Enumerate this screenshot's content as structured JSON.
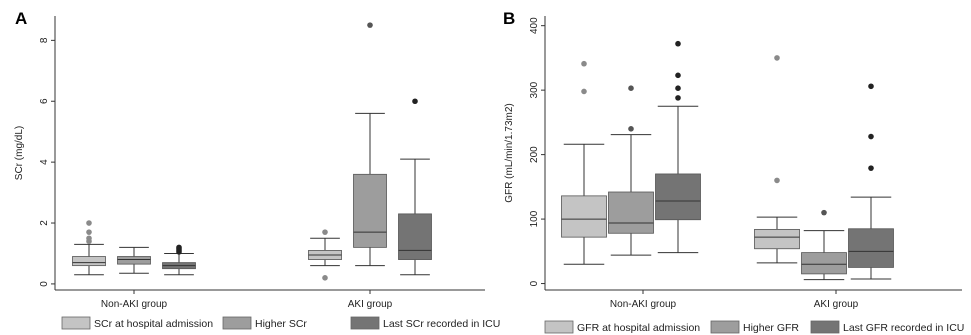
{
  "chart_data": [
    {
      "type": "box",
      "panel_label": "A",
      "ylabel": "SCr (mg/dL)",
      "xlabel": "",
      "ylim": [
        -0.2,
        8.8
      ],
      "yticks": [
        0,
        2,
        4,
        6,
        8
      ],
      "grid": false,
      "legend_position": "bottom",
      "categories": [
        "Non-AKI group",
        "AKI group"
      ],
      "series": [
        {
          "name": "SCr at hospital admission",
          "color": "#c4c4c4",
          "boxes": [
            {
              "min": 0.3,
              "q1": 0.6,
              "median": 0.7,
              "q3": 0.9,
              "max": 1.3,
              "outliers": [
                1.4,
                1.5,
                1.7,
                2.0
              ]
            },
            {
              "min": 0.6,
              "q1": 0.8,
              "median": 0.95,
              "q3": 1.1,
              "max": 1.5,
              "outliers": [
                0.2,
                1.7
              ]
            }
          ]
        },
        {
          "name": "Higher SCr",
          "color": "#9d9d9d",
          "boxes": [
            {
              "min": 0.35,
              "q1": 0.65,
              "median": 0.8,
              "q3": 0.9,
              "max": 1.2,
              "outliers": []
            },
            {
              "min": 0.6,
              "q1": 1.2,
              "median": 1.7,
              "q3": 3.6,
              "max": 5.6,
              "outliers": [
                8.5
              ]
            }
          ]
        },
        {
          "name": "Last SCr recorded in ICU",
          "color": "#747474",
          "boxes": [
            {
              "min": 0.3,
              "q1": 0.5,
              "median": 0.6,
              "q3": 0.7,
              "max": 1.0,
              "outliers": [
                1.05,
                1.1,
                1.15,
                1.2
              ]
            },
            {
              "min": 0.3,
              "q1": 0.8,
              "median": 1.1,
              "q3": 2.3,
              "max": 4.1,
              "outliers": [
                6.0
              ]
            }
          ]
        }
      ]
    },
    {
      "type": "box",
      "panel_label": "B",
      "ylabel": "GFR (mL/min/1.73m2)",
      "xlabel": "",
      "ylim": [
        -10,
        415
      ],
      "yticks": [
        0,
        100,
        200,
        300,
        400
      ],
      "grid": false,
      "legend_position": "bottom",
      "categories": [
        "Non-AKI group",
        "AKI group"
      ],
      "series": [
        {
          "name": "GFR at hospital admission",
          "color": "#c4c4c4",
          "boxes": [
            {
              "min": 30,
              "q1": 72,
              "median": 100,
              "q3": 136,
              "max": 216,
              "outliers": [
                298,
                341
              ]
            },
            {
              "min": 32,
              "q1": 54,
              "median": 72,
              "q3": 84,
              "max": 103,
              "outliers": [
                160,
                350
              ]
            }
          ]
        },
        {
          "name": "Higher GFR",
          "color": "#9d9d9d",
          "boxes": [
            {
              "min": 44,
              "q1": 78,
              "median": 94,
              "q3": 142,
              "max": 231,
              "outliers": [
                240,
                303
              ]
            },
            {
              "min": 6,
              "q1": 15,
              "median": 30,
              "q3": 48,
              "max": 82,
              "outliers": [
                110
              ]
            }
          ]
        },
        {
          "name": "Last GFR recorded in ICU",
          "color": "#747474",
          "boxes": [
            {
              "min": 48,
              "q1": 99,
              "median": 128,
              "q3": 170,
              "max": 275,
              "outliers": [
                288,
                303,
                323,
                372
              ]
            },
            {
              "min": 7,
              "q1": 25,
              "median": 50,
              "q3": 85,
              "max": 134,
              "outliers": [
                179,
                228,
                306
              ]
            }
          ]
        }
      ]
    }
  ]
}
